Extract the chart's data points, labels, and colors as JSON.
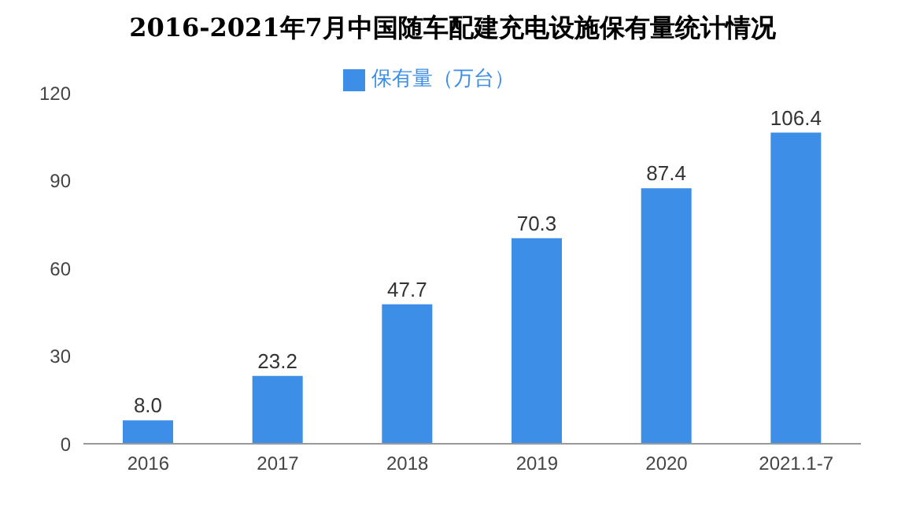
{
  "chart_data": {
    "type": "bar",
    "title": "2016-2021年7月中国随车配建充电设施保有量统计情况",
    "categories": [
      "2016",
      "2017",
      "2018",
      "2019",
      "2020",
      "2021.1-7"
    ],
    "series": [
      {
        "name": "保有量（万台）",
        "color": "#3d8ee6",
        "values": [
          8.0,
          23.2,
          47.7,
          70.3,
          87.4,
          106.4
        ],
        "value_labels": [
          "8.0",
          "23.2",
          "47.7",
          "70.3",
          "87.4",
          "106.4"
        ]
      }
    ],
    "ylim": [
      0,
      120
    ],
    "yticks": [
      0,
      30,
      60,
      90,
      120
    ],
    "grid": false,
    "legend": "top"
  }
}
